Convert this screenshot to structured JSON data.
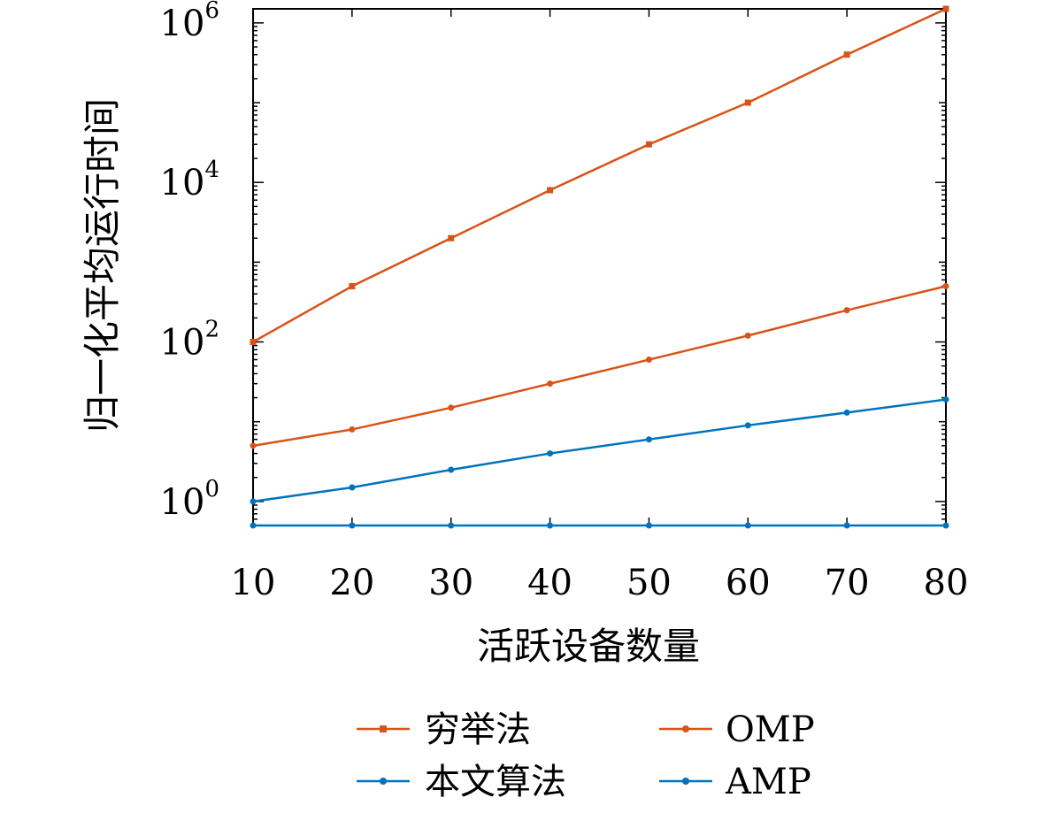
{
  "chart_data": {
    "type": "line",
    "title": "",
    "xlabel": "活跃设备数量",
    "ylabel": "归一化平均运行时间",
    "x": [
      10,
      20,
      30,
      40,
      50,
      60,
      70,
      80
    ],
    "x_ticks": [
      "10",
      "20",
      "30",
      "40",
      "50",
      "60",
      "70",
      "80"
    ],
    "xlim": [
      10,
      80
    ],
    "y_scale": "log",
    "ylim": [
      0.5,
      1500000
    ],
    "y_ticks": [
      {
        "value": 1,
        "base": "10",
        "exp": "0"
      },
      {
        "value": 100,
        "base": "10",
        "exp": "2"
      },
      {
        "value": 10000,
        "base": "10",
        "exp": "4"
      },
      {
        "value": 1000000,
        "base": "10",
        "exp": "6"
      }
    ],
    "grid": false,
    "legend_position": "bottom",
    "series": [
      {
        "name": "穷举法",
        "color": "#D95319",
        "marker": "square",
        "values": [
          100,
          500,
          2000,
          8000,
          30000,
          100000,
          400000,
          1500000
        ]
      },
      {
        "name": "OMP",
        "color": "#D95319",
        "marker": "dot",
        "values": [
          5,
          8,
          15,
          30,
          60,
          120,
          250,
          500
        ]
      },
      {
        "name": "本文算法",
        "color": "#0072BD",
        "marker": "dot",
        "values": [
          1,
          1.5,
          2.5,
          4,
          6,
          9,
          13,
          19
        ]
      },
      {
        "name": "AMP",
        "color": "#0072BD",
        "marker": "dot",
        "values": [
          0.5,
          0.5,
          0.5,
          0.5,
          0.5,
          0.5,
          0.5,
          0.5
        ]
      }
    ]
  }
}
